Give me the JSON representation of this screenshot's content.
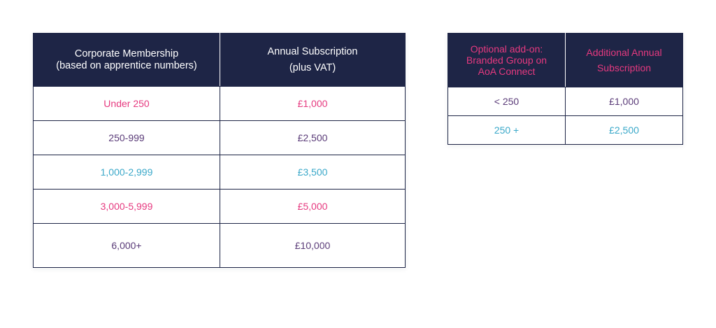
{
  "colors": {
    "navy": "#1e2546",
    "pink": "#e6397f",
    "purple": "#5a3b78",
    "teal": "#3aa8c9",
    "header_text": "#ffffff"
  },
  "membership": {
    "header": {
      "col1": [
        "Corporate Membership",
        "(based on apprentice numbers)"
      ],
      "col2": [
        "Annual Subscription",
        "(plus VAT)"
      ]
    },
    "rows": [
      {
        "band": "Under 250",
        "price": "£1,000",
        "color": "#e6397f"
      },
      {
        "band": "250-999",
        "price": "£2,500",
        "color": "#5a3b78"
      },
      {
        "band": "1,000-2,999",
        "price": "£3,500",
        "color": "#3aa8c9"
      },
      {
        "band": "3,000-5,999",
        "price": "£5,000",
        "color": "#e6397f"
      },
      {
        "band": "6,000+",
        "price": "£10,000",
        "color": "#5a3b78"
      }
    ]
  },
  "addon": {
    "header": {
      "col1": [
        "Optional add-on:",
        "Branded Group on",
        "AoA Connect"
      ],
      "col2": [
        "Additional Annual",
        "Subscription"
      ],
      "color": "#e6397f"
    },
    "rows": [
      {
        "band": "< 250",
        "price": "£1,000",
        "color": "#5a3b78"
      },
      {
        "band": "250 +",
        "price": "£2,500",
        "color": "#3aa8c9"
      }
    ]
  }
}
